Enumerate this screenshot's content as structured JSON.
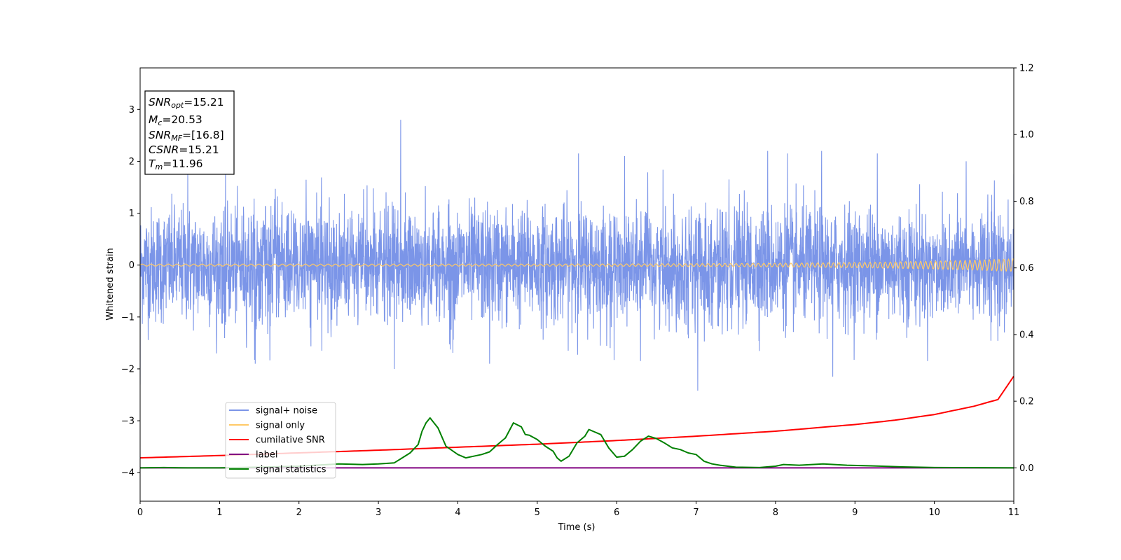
{
  "chart_data": {
    "type": "line",
    "title": "",
    "xlabel": "Time (s)",
    "ylabel": "Whitened strain",
    "xlim": [
      0,
      11
    ],
    "ylim_left": [
      -4.55,
      3.8
    ],
    "ylim_right": [
      -0.1,
      1.2
    ],
    "x_ticks": [
      "0",
      "1",
      "2",
      "3",
      "4",
      "5",
      "6",
      "7",
      "8",
      "9",
      "10",
      "11"
    ],
    "y_ticks_left": [
      "−4",
      "−3",
      "−2",
      "−1",
      "0",
      "1",
      "2",
      "3"
    ],
    "y_ticks_right": [
      "0.0",
      "0.2",
      "0.4",
      "0.6",
      "0.8",
      "1.0",
      "1.2"
    ],
    "grid": false,
    "legend_position": "lower-left",
    "annotation": {
      "lines": [
        {
          "base": "SNR",
          "sub": "opt",
          "value": "=15.21"
        },
        {
          "base": "M",
          "sub": "c",
          "value": "=20.53"
        },
        {
          "base": "SNR",
          "sub": "MF",
          "value": "=[16.8]"
        },
        {
          "base": "CSNR",
          "sub": "",
          "value": "=15.21"
        },
        {
          "base": "T",
          "sub": "m",
          "value": "=11.96"
        }
      ]
    },
    "series": [
      {
        "name": "signal+ noise",
        "color": "#7b95e8",
        "axis": "left",
        "kind": "noise",
        "typical_amplitude": 1.2,
        "spikes": [
          [
            0.6,
            1.75
          ],
          [
            3.28,
            2.8
          ],
          [
            3.3,
            0.3
          ],
          [
            5.52,
            2.15
          ],
          [
            6.1,
            2.1
          ],
          [
            7.9,
            2.2
          ],
          [
            8.15,
            2.15
          ],
          [
            8.58,
            2.2
          ],
          [
            9.28,
            2.15
          ],
          [
            10.4,
            2.0
          ],
          [
            11.0,
            1.75
          ],
          [
            3.2,
            -2.0
          ],
          [
            7.02,
            -2.42
          ],
          [
            8.72,
            -2.15
          ],
          [
            6.3,
            -1.85
          ],
          [
            4.4,
            -1.9
          ],
          [
            0.0,
            -2.3
          ],
          [
            1.45,
            -1.9
          ]
        ]
      },
      {
        "name": "signal only",
        "color": "#ffc966",
        "axis": "left",
        "kind": "chirp",
        "amplitude_start": 0.02,
        "amplitude_end": 0.12
      },
      {
        "name": "cumilative SNR",
        "color": "#ff0000",
        "axis": "right",
        "x": [
          0,
          1,
          2,
          3,
          4,
          5,
          6,
          7,
          8,
          9,
          9.5,
          10,
          10.5,
          10.8,
          11
        ],
        "y": [
          0.03,
          0.037,
          0.045,
          0.053,
          0.062,
          0.071,
          0.082,
          0.095,
          0.11,
          0.13,
          0.143,
          0.16,
          0.185,
          0.205,
          0.275
        ]
      },
      {
        "name": "label",
        "color": "#800080",
        "axis": "right",
        "x": [
          0,
          11
        ],
        "y": [
          0.0,
          0.0
        ]
      },
      {
        "name": "signal statistics",
        "color": "#008000",
        "axis": "right",
        "x": [
          0,
          0.3,
          0.6,
          1.0,
          1.5,
          2.0,
          2.5,
          2.8,
          3.0,
          3.2,
          3.3,
          3.4,
          3.5,
          3.55,
          3.6,
          3.65,
          3.75,
          3.85,
          4.0,
          4.1,
          4.2,
          4.3,
          4.4,
          4.5,
          4.6,
          4.7,
          4.8,
          4.85,
          4.9,
          5.0,
          5.1,
          5.2,
          5.25,
          5.3,
          5.4,
          5.5,
          5.6,
          5.65,
          5.7,
          5.8,
          5.9,
          6.0,
          6.1,
          6.2,
          6.3,
          6.4,
          6.5,
          6.6,
          6.7,
          6.8,
          6.9,
          7.0,
          7.1,
          7.2,
          7.3,
          7.5,
          7.8,
          8.0,
          8.1,
          8.3,
          8.6,
          8.9,
          9.2,
          9.6,
          10.0,
          11.0
        ],
        "y": [
          0.0,
          0.001,
          0.0,
          0.0,
          0.002,
          0.005,
          0.012,
          0.01,
          0.012,
          0.015,
          0.03,
          0.045,
          0.07,
          0.11,
          0.135,
          0.15,
          0.12,
          0.065,
          0.04,
          0.03,
          0.035,
          0.04,
          0.048,
          0.07,
          0.09,
          0.135,
          0.123,
          0.1,
          0.098,
          0.085,
          0.065,
          0.05,
          0.03,
          0.02,
          0.035,
          0.075,
          0.095,
          0.115,
          0.11,
          0.1,
          0.06,
          0.032,
          0.035,
          0.055,
          0.08,
          0.095,
          0.088,
          0.075,
          0.06,
          0.055,
          0.045,
          0.04,
          0.02,
          0.012,
          0.008,
          0.002,
          0.001,
          0.005,
          0.01,
          0.008,
          0.012,
          0.008,
          0.006,
          0.003,
          0.001,
          0.0
        ]
      }
    ]
  }
}
